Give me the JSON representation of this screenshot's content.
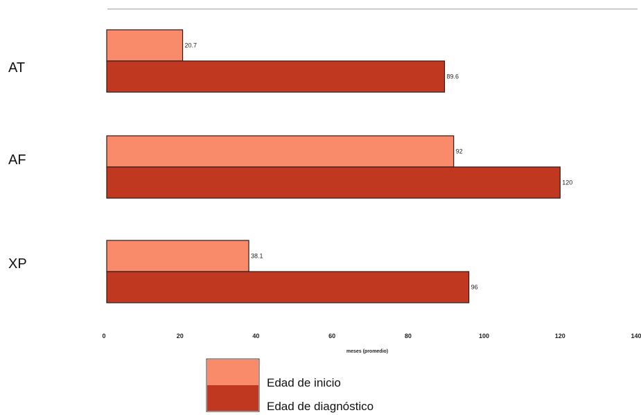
{
  "chart_data": {
    "type": "bar",
    "orientation": "horizontal",
    "categories": [
      "AT",
      "AF",
      "XP"
    ],
    "series": [
      {
        "name": "Edad de inicio",
        "color": "#f98a6a",
        "values": [
          20.7,
          92,
          38.1
        ],
        "labels": [
          "20.7",
          "92",
          "38.1"
        ]
      },
      {
        "name": "Edad de diagnóstico",
        "color": "#c0381f",
        "values": [
          89.6,
          120,
          96
        ],
        "labels": [
          "89.6",
          "120",
          "96"
        ]
      }
    ],
    "xlabel": "meses (promedio)",
    "ylabel": "",
    "xlim": [
      0,
      140
    ],
    "xticks": [
      0,
      20,
      40,
      60,
      80,
      100,
      120,
      140
    ],
    "grid": false,
    "legend_position": "bottom"
  }
}
